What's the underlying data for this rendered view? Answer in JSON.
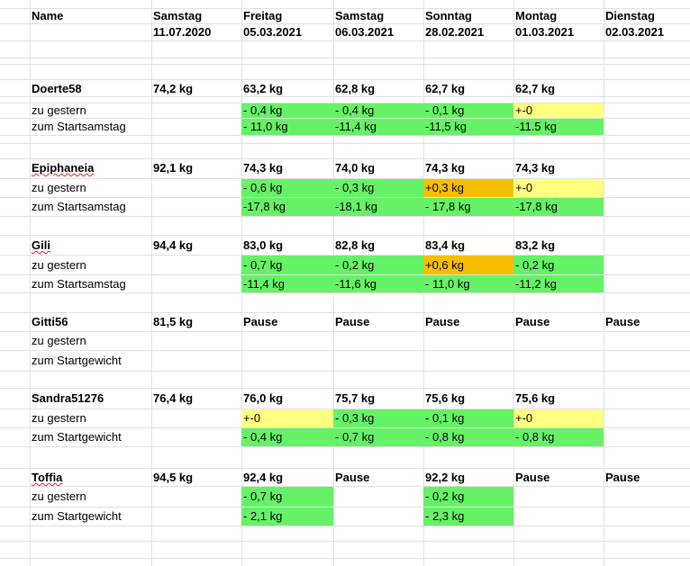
{
  "header": {
    "name_label": "Name",
    "columns": [
      {
        "day": "Samstag",
        "date": "11.07.2020"
      },
      {
        "day": "Freitag",
        "date": "05.03.2021"
      },
      {
        "day": "Samstag",
        "date": "06.03.2021"
      },
      {
        "day": "Sonntag",
        "date": "28.02.2021"
      },
      {
        "day": "Montag",
        "date": "01.03.2021"
      },
      {
        "day": "Dienstag",
        "date": "02.03.2021"
      }
    ]
  },
  "colors": {
    "green": "#66f266",
    "yellow": "#ffff80",
    "orange": "#f7be00",
    "grid": "#e1e1e1"
  },
  "participants": [
    {
      "name": "Doerte58",
      "weights": [
        "74,2 kg",
        "63,2 kg",
        "62,8 kg",
        "62,7 kg",
        "62,7 kg",
        ""
      ],
      "diff_label": "zu gestern",
      "diffs": [
        "",
        "- 0,4 kg",
        "- 0,4 kg",
        "- 0,1 kg",
        "+-0",
        ""
      ],
      "diff_colors": [
        "",
        "green",
        "green",
        "green",
        "yellow",
        ""
      ],
      "total_label": "zum Startsamstag",
      "totals": [
        "",
        "- 11,0 kg",
        "-11,4 kg",
        "-11,5 kg",
        "-11.5 kg",
        ""
      ],
      "total_colors": [
        "",
        "green",
        "green",
        "green",
        "green",
        ""
      ]
    },
    {
      "name": "Epiphaneia",
      "weights": [
        "92,1 kg",
        "74,3 kg",
        "74,0 kg",
        "74,3 kg",
        "74,3 kg",
        ""
      ],
      "diff_label": "zu gestern",
      "diffs": [
        "",
        "- 0,6 kg",
        "- 0,3 kg",
        "+0,3 kg",
        "+-0",
        ""
      ],
      "diff_colors": [
        "",
        "green",
        "green",
        "orange",
        "yellow",
        ""
      ],
      "total_label": "zum Startsamstag",
      "totals": [
        "",
        "-17,8 kg",
        "-18,1 kg",
        "- 17,8 kg",
        "-17,8 kg",
        ""
      ],
      "total_colors": [
        "",
        "green",
        "green",
        "green",
        "green",
        ""
      ]
    },
    {
      "name": "Gili",
      "weights": [
        "94,4 kg",
        "83,0 kg",
        "82,8 kg",
        "83,4 kg",
        "83,2 kg",
        ""
      ],
      "diff_label": "zu gestern",
      "diffs": [
        "",
        "- 0,7 kg",
        "- 0,2 kg",
        "+0,6 kg",
        "- 0,2 kg",
        ""
      ],
      "diff_colors": [
        "",
        "green",
        "green",
        "orange",
        "green",
        ""
      ],
      "total_label": "zum Startsamstag",
      "totals": [
        "",
        "-11,4 kg",
        "-11,6 kg",
        "- 11,0 kg",
        "-11,2 kg",
        ""
      ],
      "total_colors": [
        "",
        "green",
        "green",
        "green",
        "green",
        ""
      ]
    },
    {
      "name": "Gitti56",
      "weights": [
        "81,5 kg",
        "Pause",
        "Pause",
        "Pause",
        "Pause",
        "Pause"
      ],
      "diff_label": "zu gestern",
      "diffs": [
        "",
        "",
        "",
        "",
        "",
        ""
      ],
      "diff_colors": [
        "",
        "",
        "",
        "",
        "",
        ""
      ],
      "total_label": "zum Startgewicht",
      "totals": [
        "",
        "",
        "",
        "",
        "",
        ""
      ],
      "total_colors": [
        "",
        "",
        "",
        "",
        "",
        ""
      ]
    },
    {
      "name": "Sandra51276",
      "weights": [
        "76,4 kg",
        "76,0 kg",
        "75,7 kg",
        "75,6 kg",
        "75,6 kg",
        ""
      ],
      "diff_label": "zu gestern",
      "diffs": [
        "",
        "+-0",
        "- 0,3 kg",
        "- 0,1 kg",
        "+-0",
        ""
      ],
      "diff_colors": [
        "",
        "yellow",
        "green",
        "green",
        "yellow",
        ""
      ],
      "total_label": "zum Startgewicht",
      "totals": [
        "",
        "- 0,4 kg",
        "- 0,7 kg",
        "- 0,8 kg",
        "- 0,8 kg",
        ""
      ],
      "total_colors": [
        "",
        "green",
        "green",
        "green",
        "green",
        ""
      ]
    },
    {
      "name": "Toffia",
      "weights": [
        "94,5 kg",
        "92,4 kg",
        "Pause",
        "92,2 kg",
        "Pause",
        "Pause"
      ],
      "diff_label": "zu gestern",
      "diffs": [
        "",
        "- 0,7 kg",
        "",
        "- 0,2 kg",
        "",
        ""
      ],
      "diff_colors": [
        "",
        "green",
        "",
        "green",
        "",
        ""
      ],
      "total_label": "zum Startgewicht",
      "totals": [
        "",
        "- 2,1 kg",
        "",
        "- 2,3 kg",
        "",
        ""
      ],
      "total_colors": [
        "",
        "green",
        "",
        "green",
        "",
        ""
      ]
    }
  ]
}
